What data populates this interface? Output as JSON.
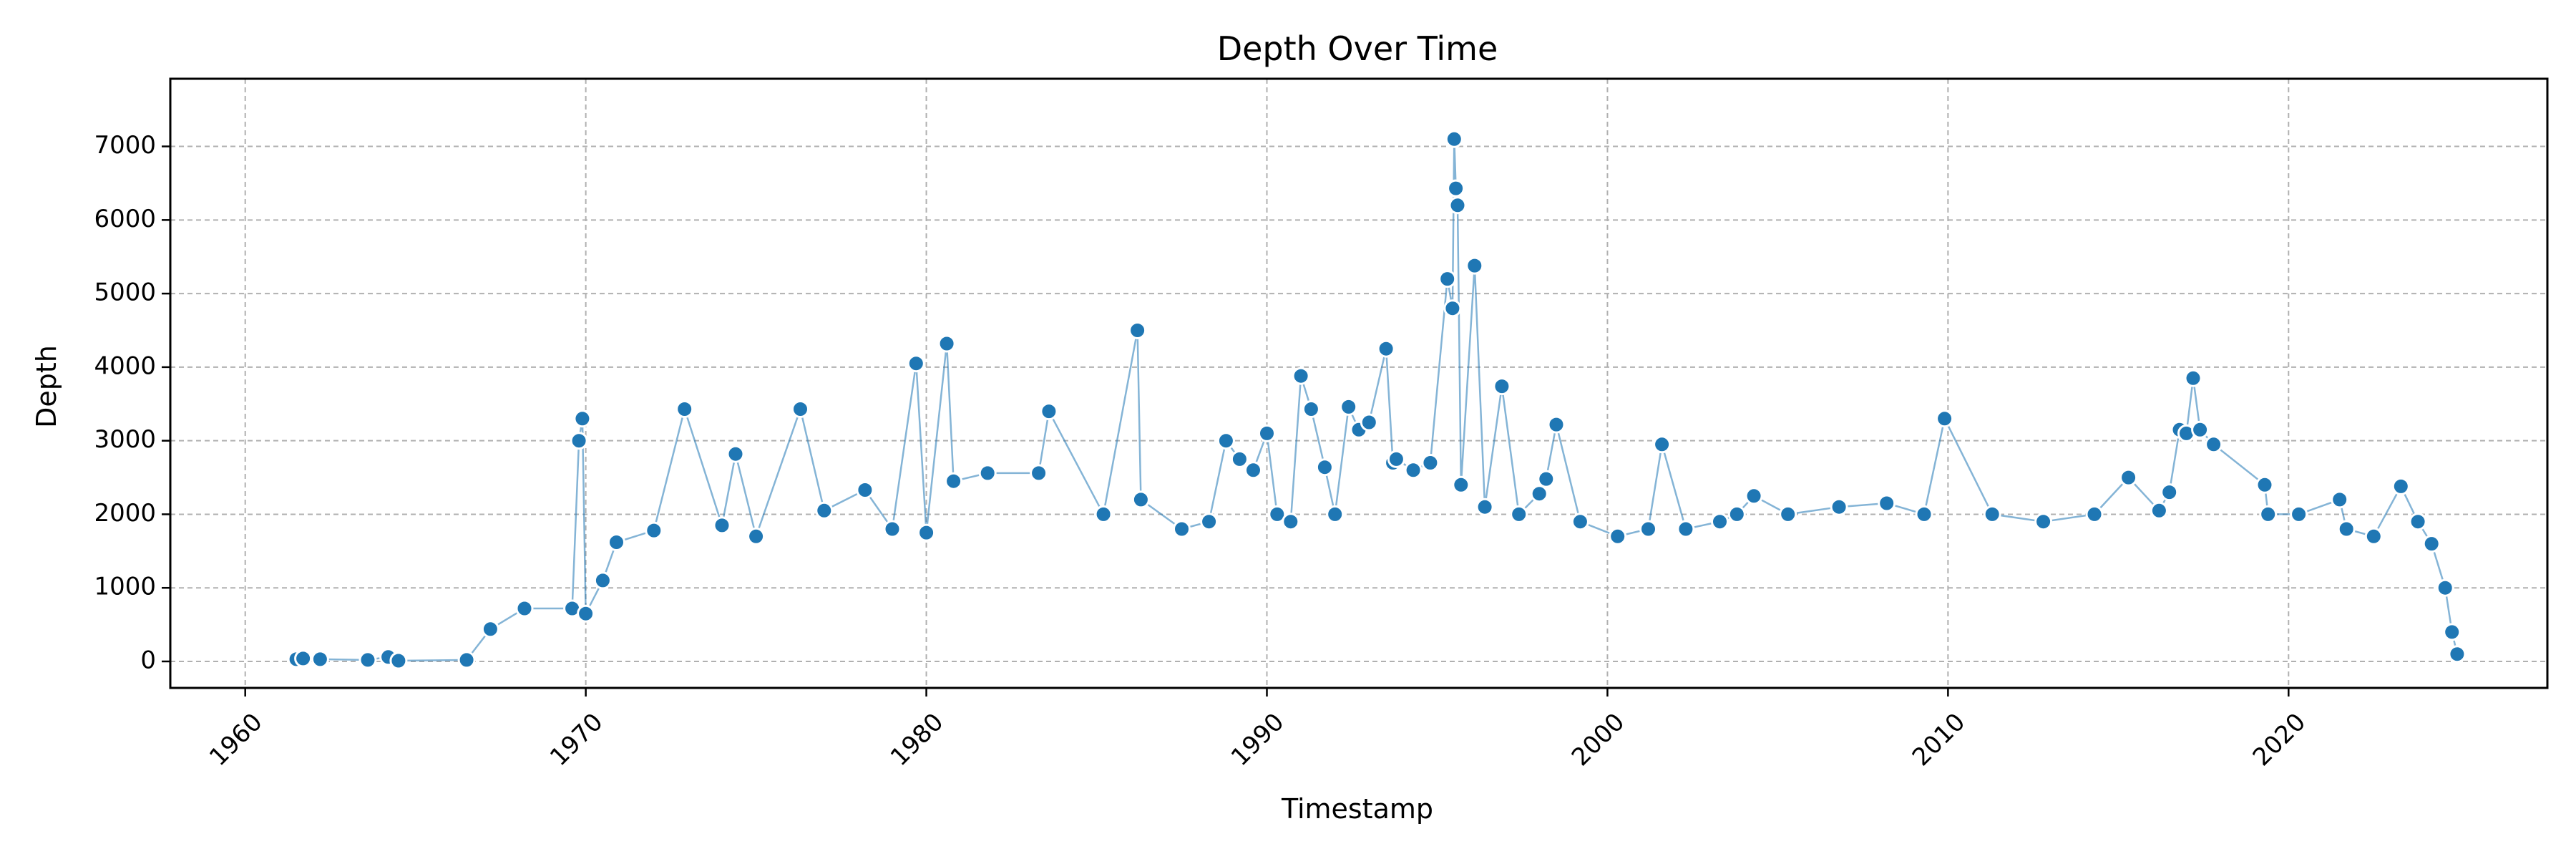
{
  "chart_data": {
    "type": "line",
    "title": "Depth Over Time",
    "xlabel": "Timestamp",
    "ylabel": "Depth",
    "xlim": [
      1957.8,
      2027.6
    ],
    "ylim": [
      -360,
      7920
    ],
    "x_ticks": [
      1960,
      1970,
      1980,
      1990,
      2000,
      2010,
      2020
    ],
    "x_tick_labels": [
      "1960",
      "1970",
      "1980",
      "1990",
      "2000",
      "2010",
      "2020"
    ],
    "x_tick_rotation_deg": -45,
    "y_ticks": [
      0,
      1000,
      2000,
      3000,
      4000,
      5000,
      6000,
      7000
    ],
    "y_tick_labels": [
      "0",
      "1000",
      "2000",
      "3000",
      "4000",
      "5000",
      "6000",
      "7000"
    ],
    "grid": true,
    "colors": {
      "series": "#1f77b4",
      "grid": "#b0b0b0",
      "marker_edge": "#ffffff"
    },
    "series": [
      {
        "marker": "circle",
        "x": [
          1961.5,
          1961.7,
          1962.2,
          1963.6,
          1964.2,
          1964.5,
          1966.5,
          1967.2,
          1968.2,
          1969.6,
          1969.8,
          1969.9,
          1970.0,
          1970.5,
          1970.9,
          1972.0,
          1972.9,
          1974.0,
          1974.4,
          1975.0,
          1976.3,
          1977.0,
          1978.2,
          1979.0,
          1979.7,
          1980.0,
          1980.6,
          1980.8,
          1981.8,
          1983.3,
          1983.6,
          1985.2,
          1986.2,
          1986.3,
          1987.5,
          1988.3,
          1988.8,
          1989.2,
          1989.6,
          1990.0,
          1990.3,
          1990.7,
          1991.0,
          1991.3,
          1991.7,
          1992.0,
          1992.4,
          1992.7,
          1993.0,
          1993.5,
          1993.7,
          1993.8,
          1994.3,
          1994.8,
          1995.3,
          1995.45,
          1995.5,
          1995.55,
          1995.6,
          1995.7,
          1996.1,
          1996.4,
          1996.9,
          1997.4,
          1998.0,
          1998.2,
          1998.5,
          1999.2,
          2000.3,
          2001.2,
          2001.6,
          2002.3,
          2003.3,
          2003.8,
          2004.3,
          2005.3,
          2006.8,
          2008.2,
          2009.3,
          2009.9,
          2011.3,
          2012.8,
          2014.3,
          2015.3,
          2016.2,
          2016.5,
          2016.8,
          2017.0,
          2017.2,
          2017.4,
          2017.8,
          2019.3,
          2019.4,
          2020.3,
          2021.5,
          2021.7,
          2022.5,
          2023.3,
          2023.8,
          2024.2,
          2024.6,
          2024.8,
          2024.95
        ],
        "y": [
          30,
          40,
          30,
          20,
          60,
          10,
          20,
          440,
          720,
          720,
          3000,
          3300,
          650,
          1100,
          1620,
          1780,
          3430,
          1850,
          2820,
          1700,
          3430,
          2050,
          2330,
          1800,
          4050,
          1750,
          4320,
          2450,
          2560,
          2560,
          3400,
          2000,
          4500,
          2200,
          1800,
          1900,
          3000,
          2750,
          2600,
          3100,
          2000,
          1900,
          3880,
          3430,
          2640,
          2000,
          3460,
          3150,
          3250,
          4250,
          2700,
          2750,
          2600,
          2700,
          5200,
          4800,
          7100,
          6430,
          6200,
          2400,
          5380,
          2100,
          3740,
          2000,
          2280,
          2480,
          3220,
          1900,
          1700,
          1800,
          2950,
          1800,
          1900,
          2000,
          2250,
          2000,
          2100,
          2150,
          2000,
          3300,
          2000,
          1900,
          2000,
          2500,
          2050,
          2300,
          3150,
          3100,
          3850,
          3150,
          2950,
          2400,
          2000,
          2000,
          2200,
          1800,
          1700,
          2380,
          1900,
          1600,
          1000,
          400,
          100
        ]
      }
    ]
  }
}
